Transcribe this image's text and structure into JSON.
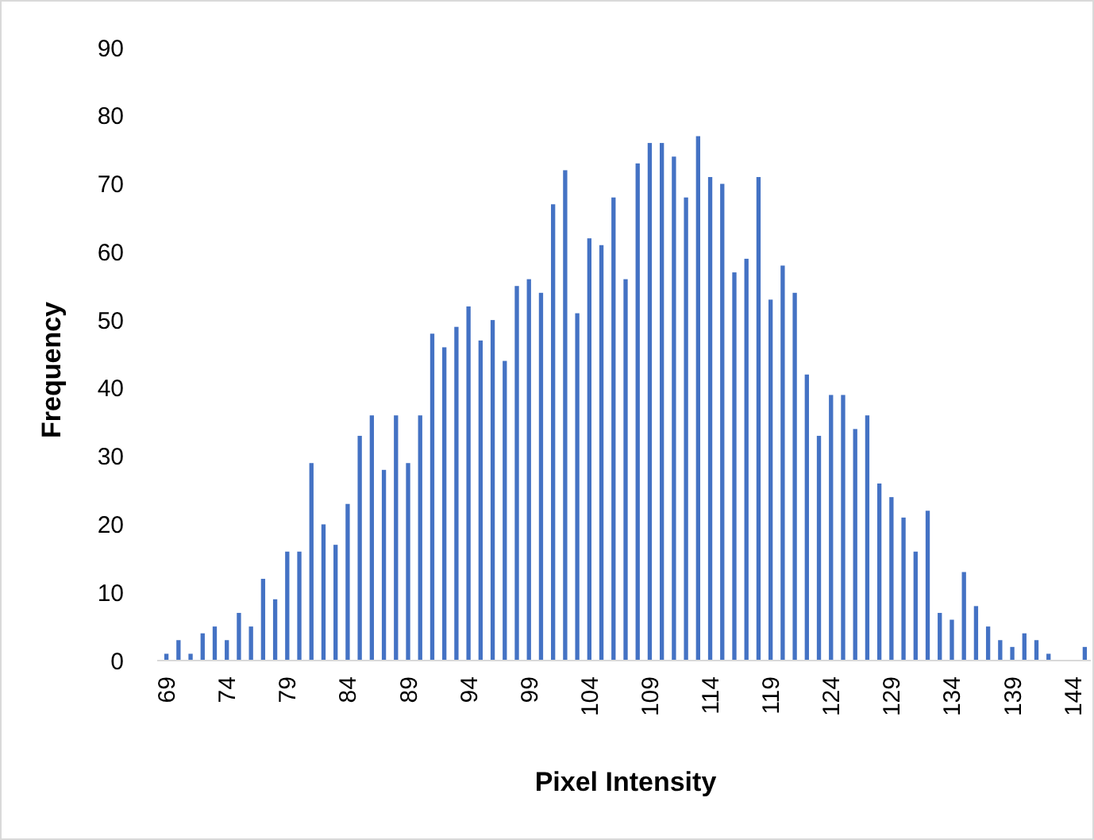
{
  "chart_data": {
    "type": "bar",
    "xlabel": "Pixel Intensity",
    "ylabel": "Frequency",
    "categories": [
      "69",
      null,
      null,
      null,
      null,
      "74",
      null,
      null,
      null,
      null,
      "79",
      null,
      null,
      null,
      null,
      "84",
      null,
      null,
      null,
      null,
      "89",
      null,
      null,
      null,
      null,
      "94",
      null,
      null,
      null,
      null,
      "99",
      null,
      null,
      null,
      null,
      "104",
      null,
      null,
      null,
      null,
      "109",
      null,
      null,
      null,
      null,
      "114",
      null,
      null,
      null,
      null,
      "119",
      null,
      null,
      null,
      null,
      "124",
      null,
      null,
      null,
      null,
      "129",
      null,
      null,
      null,
      null,
      "134",
      null,
      null,
      null,
      null,
      "139",
      null,
      null,
      null,
      null,
      "144",
      null
    ],
    "values": [
      1,
      3,
      1,
      4,
      5,
      3,
      7,
      5,
      12,
      9,
      16,
      16,
      29,
      20,
      17,
      23,
      33,
      36,
      28,
      36,
      29,
      36,
      48,
      46,
      49,
      52,
      47,
      50,
      44,
      55,
      56,
      54,
      67,
      72,
      51,
      62,
      61,
      68,
      56,
      73,
      76,
      76,
      74,
      68,
      77,
      71,
      70,
      57,
      59,
      71,
      53,
      58,
      54,
      42,
      33,
      39,
      39,
      34,
      36,
      26,
      24,
      21,
      16,
      22,
      7,
      6,
      13,
      8,
      5,
      3,
      2,
      4,
      3,
      1,
      0,
      0,
      2
    ],
    "color": "#4472c4",
    "ylim": [
      0,
      90
    ],
    "yticks": [
      0,
      10,
      20,
      30,
      40,
      50,
      60,
      70,
      80,
      90
    ],
    "grid": false
  }
}
